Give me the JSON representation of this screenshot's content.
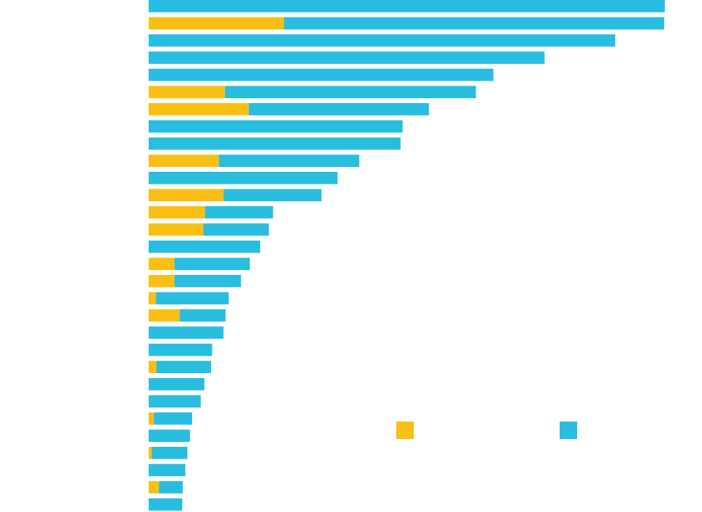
{
  "chart_data": {
    "type": "bar",
    "orientation": "horizontal",
    "stacked": true,
    "xlim": [
      0,
      100
    ],
    "grid": false,
    "legend_position": "bottom-right",
    "series": [
      {
        "color": "#f9c013",
        "values": [
          0,
          26.2,
          0,
          0,
          0,
          14.8,
          19.4,
          0,
          0,
          13.6,
          0,
          14.5,
          10.9,
          10.6,
          0,
          5.0,
          5.0,
          1.4,
          6.0,
          0,
          0,
          1.5,
          0,
          0,
          1.0,
          0,
          0.6,
          0,
          2.0,
          0
        ]
      },
      {
        "color": "#29bde0",
        "values": [
          100,
          73.7,
          90.4,
          76.7,
          66.8,
          48.6,
          34.9,
          49.2,
          48.8,
          27.2,
          36.6,
          19.0,
          13.2,
          12.7,
          21.6,
          14.6,
          12.9,
          14.1,
          8.9,
          14.5,
          12.3,
          10.6,
          10.8,
          10.1,
          7.4,
          8.0,
          6.9,
          7.1,
          4.6,
          6.5
        ]
      }
    ]
  }
}
